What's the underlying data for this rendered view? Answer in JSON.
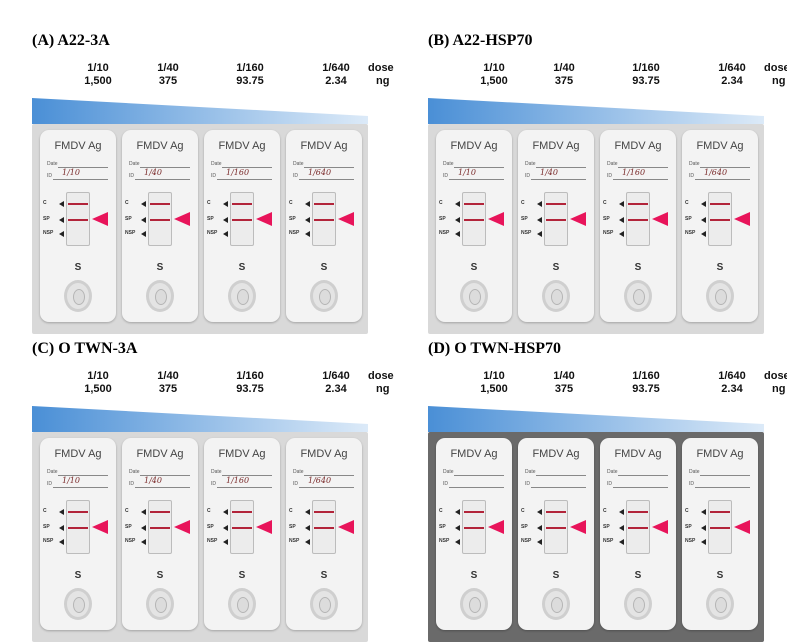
{
  "panels": [
    {
      "title": "(A)  A22-3A",
      "doses": [
        {
          "ratio": "1/10",
          "amount": "1,500"
        },
        {
          "ratio": "1/40",
          "amount": "375"
        },
        {
          "ratio": "1/160",
          "amount": "93.75"
        },
        {
          "ratio": "1/640",
          "amount": "2.34"
        }
      ],
      "unit_top": "dose",
      "unit_bottom": "ng",
      "cassettes": [
        {
          "brand": "FMDV Ag",
          "sample_id": "1/10"
        },
        {
          "brand": "FMDV Ag",
          "sample_id": "1/40"
        },
        {
          "brand": "FMDV Ag",
          "sample_id": "1/160"
        },
        {
          "brand": "FMDV Ag",
          "sample_id": "1/640"
        }
      ]
    },
    {
      "title": "(B)  A22-HSP70",
      "doses": [
        {
          "ratio": "1/10",
          "amount": "1,500"
        },
        {
          "ratio": "1/40",
          "amount": "375"
        },
        {
          "ratio": "1/160",
          "amount": "93.75"
        },
        {
          "ratio": "1/640",
          "amount": "2.34"
        }
      ],
      "unit_top": "dose",
      "unit_bottom": "ng",
      "cassettes": [
        {
          "brand": "FMDV Ag",
          "sample_id": "1/10"
        },
        {
          "brand": "FMDV Ag",
          "sample_id": "1/40"
        },
        {
          "brand": "FMDV Ag",
          "sample_id": "1/160"
        },
        {
          "brand": "FMDV Ag",
          "sample_id": "1/640"
        }
      ]
    },
    {
      "title": "(C)  O  TWN-3A",
      "doses": [
        {
          "ratio": "1/10",
          "amount": "1,500"
        },
        {
          "ratio": "1/40",
          "amount": "375"
        },
        {
          "ratio": "1/160",
          "amount": "93.75"
        },
        {
          "ratio": "1/640",
          "amount": "2.34"
        }
      ],
      "unit_top": "dose",
      "unit_bottom": "ng",
      "cassettes": [
        {
          "brand": "FMDV Ag",
          "sample_id": "1/10"
        },
        {
          "brand": "FMDV Ag",
          "sample_id": "1/40"
        },
        {
          "brand": "FMDV Ag",
          "sample_id": "1/160"
        },
        {
          "brand": "FMDV Ag",
          "sample_id": "1/640"
        }
      ]
    },
    {
      "title": "(D)  O  TWN-HSP70",
      "doses": [
        {
          "ratio": "1/10",
          "amount": "1,500"
        },
        {
          "ratio": "1/40",
          "amount": "375"
        },
        {
          "ratio": "1/160",
          "amount": "93.75"
        },
        {
          "ratio": "1/640",
          "amount": "2.34"
        }
      ],
      "unit_top": "dose",
      "unit_bottom": "ng",
      "cassettes": [
        {
          "brand": "FMDV Ag",
          "sample_id": ""
        },
        {
          "brand": "FMDV Ag",
          "sample_id": ""
        },
        {
          "brand": "FMDV Ag",
          "sample_id": ""
        },
        {
          "brand": "FMDV Ag",
          "sample_id": ""
        }
      ]
    }
  ],
  "cassette_labels": {
    "date": "Date",
    "id": "ID",
    "c": "C",
    "sp": "SP",
    "nsp": "NSP",
    "sample": "S"
  },
  "colors": {
    "wedge": "#4a8fd6",
    "arrow": "#e8145a",
    "band": "#b2243a"
  }
}
